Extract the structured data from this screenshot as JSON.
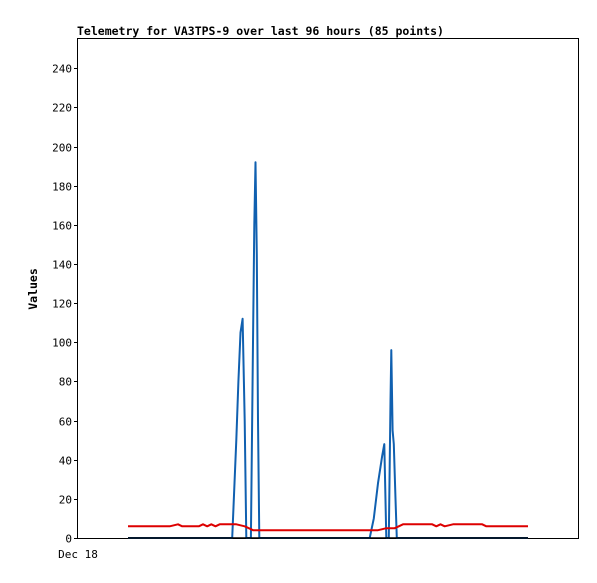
{
  "chart_data": {
    "type": "line",
    "title": "Telemetry for VA3TPS-9 over last 96 hours (85 points)",
    "ylabel": "Values",
    "xlabel": "",
    "ylim": [
      0,
      255
    ],
    "y_ticks": [
      0,
      20,
      40,
      60,
      80,
      100,
      120,
      140,
      160,
      180,
      200,
      220,
      240
    ],
    "x_tick_labels": [
      "Dec 18"
    ],
    "grid": false,
    "legend": "none",
    "series": [
      {
        "color": "#1060b0",
        "points": [
          [
            0,
            0
          ],
          [
            2,
            0
          ],
          [
            4,
            0
          ],
          [
            6,
            0
          ],
          [
            8,
            0
          ],
          [
            10,
            0
          ],
          [
            12,
            0
          ],
          [
            14,
            0
          ],
          [
            16,
            0
          ],
          [
            18,
            0
          ],
          [
            20,
            0
          ],
          [
            22,
            0
          ],
          [
            24,
            0
          ],
          [
            25,
            0
          ],
          [
            26,
            50
          ],
          [
            26.5,
            80
          ],
          [
            27,
            105
          ],
          [
            27.5,
            112
          ],
          [
            28,
            60
          ],
          [
            28.4,
            0
          ],
          [
            29,
            0
          ],
          [
            29.5,
            0
          ],
          [
            30,
            100
          ],
          [
            30.3,
            160
          ],
          [
            30.6,
            192
          ],
          [
            30.9,
            145
          ],
          [
            31.2,
            60
          ],
          [
            31.5,
            0
          ],
          [
            32,
            0
          ],
          [
            36,
            0
          ],
          [
            40,
            0
          ],
          [
            44,
            0
          ],
          [
            48,
            0
          ],
          [
            52,
            0
          ],
          [
            56,
            0
          ],
          [
            58,
            0
          ],
          [
            59,
            10
          ],
          [
            60,
            28
          ],
          [
            61,
            42
          ],
          [
            61.5,
            48
          ],
          [
            62,
            0
          ],
          [
            62.6,
            0
          ],
          [
            63,
            70
          ],
          [
            63.2,
            96
          ],
          [
            63.5,
            55
          ],
          [
            63.8,
            48
          ],
          [
            64.2,
            20
          ],
          [
            64.5,
            0
          ],
          [
            66,
            0
          ],
          [
            68,
            0
          ],
          [
            70,
            0
          ],
          [
            72,
            0
          ],
          [
            74,
            0
          ],
          [
            76,
            0
          ],
          [
            78,
            0
          ],
          [
            80,
            0
          ],
          [
            82,
            0
          ],
          [
            84,
            0
          ],
          [
            86,
            0
          ],
          [
            88,
            0
          ],
          [
            90,
            0
          ],
          [
            92,
            0
          ],
          [
            94,
            0
          ],
          [
            96,
            0
          ]
        ]
      },
      {
        "color": "#dd0000",
        "points": [
          [
            0,
            6
          ],
          [
            10,
            6
          ],
          [
            12,
            7
          ],
          [
            13,
            6
          ],
          [
            17,
            6
          ],
          [
            18,
            7
          ],
          [
            19,
            6
          ],
          [
            20,
            7
          ],
          [
            21,
            6
          ],
          [
            22,
            7
          ],
          [
            24,
            7
          ],
          [
            26,
            7
          ],
          [
            28,
            6
          ],
          [
            29,
            5
          ],
          [
            30,
            4
          ],
          [
            35,
            4
          ],
          [
            40,
            4
          ],
          [
            45,
            4
          ],
          [
            50,
            4
          ],
          [
            55,
            4
          ],
          [
            60,
            4
          ],
          [
            62,
            5
          ],
          [
            64,
            5
          ],
          [
            65,
            6
          ],
          [
            66,
            7
          ],
          [
            70,
            7
          ],
          [
            73,
            7
          ],
          [
            74,
            6
          ],
          [
            75,
            7
          ],
          [
            76,
            6
          ],
          [
            78,
            7
          ],
          [
            85,
            7
          ],
          [
            86,
            6
          ],
          [
            90,
            6
          ],
          [
            96,
            6
          ]
        ]
      },
      {
        "color": "#000000",
        "points": [
          [
            0,
            0
          ],
          [
            96,
            0
          ]
        ]
      }
    ]
  }
}
